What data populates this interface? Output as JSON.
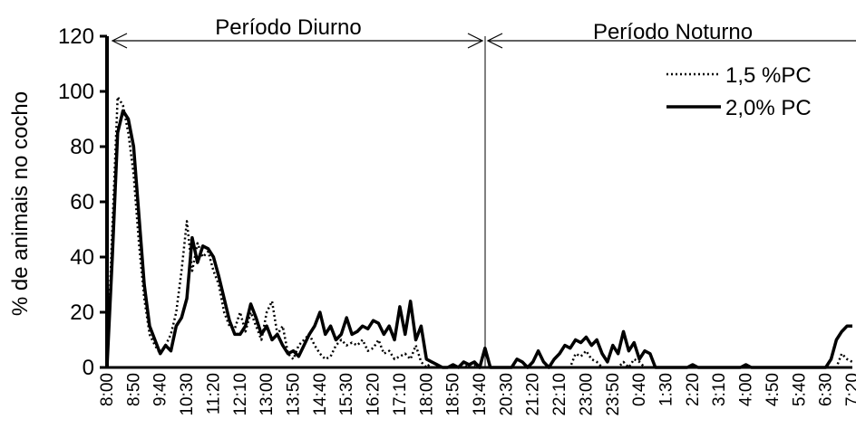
{
  "chart_data": {
    "type": "line",
    "y_label": "% de animais no cocho",
    "annotations": [
      {
        "text": "Período Diurno"
      },
      {
        "text": "Período Noturno"
      }
    ],
    "legend": "upper right",
    "ylim": [
      0,
      120
    ],
    "yticks": [
      0,
      20,
      40,
      60,
      80,
      100,
      120
    ],
    "categories": [
      "8:00",
      null,
      null,
      null,
      null,
      "8:50",
      null,
      null,
      null,
      null,
      "9:40",
      null,
      null,
      null,
      null,
      "10:30",
      null,
      null,
      null,
      null,
      "11:20",
      null,
      null,
      null,
      null,
      "12:10",
      null,
      null,
      null,
      null,
      "13:00",
      null,
      null,
      null,
      null,
      "13:50",
      null,
      null,
      null,
      null,
      "14:40",
      null,
      null,
      null,
      null,
      "15:30",
      null,
      null,
      null,
      null,
      "16:20",
      null,
      null,
      null,
      null,
      "17:10",
      null,
      null,
      null,
      null,
      "18:00",
      null,
      null,
      null,
      null,
      "18:50",
      null,
      null,
      null,
      null,
      "19:40",
      null,
      null,
      null,
      null,
      "20:30",
      null,
      null,
      null,
      null,
      "21:20",
      null,
      null,
      null,
      null,
      "22:10",
      null,
      null,
      null,
      null,
      "23:00",
      null,
      null,
      null,
      null,
      "23:50",
      null,
      null,
      null,
      null,
      "0:40",
      null,
      null,
      null,
      null,
      "1:30",
      null,
      null,
      null,
      null,
      "2:20",
      null,
      null,
      null,
      null,
      "3:10",
      null,
      null,
      null,
      null,
      "4:00",
      null,
      null,
      null,
      null,
      "4:50",
      null,
      null,
      null,
      null,
      "5:40",
      null,
      null,
      null,
      null,
      "6:30",
      null,
      null,
      null,
      null,
      "7:20"
    ],
    "series": [
      {
        "name": "1,5 %PC",
        "color": "#000000",
        "dash": "dotted",
        "values": [
          0,
          50,
          98,
          95,
          85,
          70,
          45,
          25,
          12,
          8,
          5,
          8,
          12,
          20,
          35,
          53,
          35,
          45,
          40,
          42,
          35,
          30,
          20,
          15,
          14,
          20,
          13,
          20,
          15,
          10,
          20,
          24,
          12,
          15,
          5,
          3,
          8,
          10,
          12,
          8,
          5,
          3,
          4,
          8,
          10,
          8,
          9,
          8,
          10,
          6,
          7,
          10,
          5,
          6,
          3,
          4,
          5,
          3,
          8,
          2,
          0,
          2,
          1,
          0,
          0,
          0,
          0,
          0,
          1,
          1,
          0,
          0,
          0,
          0,
          0,
          0,
          0,
          0,
          0,
          0,
          0,
          0,
          0,
          0,
          0,
          0,
          0,
          0,
          5,
          4,
          6,
          3,
          2,
          0,
          0,
          0,
          0,
          2,
          0,
          3,
          2,
          0,
          0,
          0,
          0,
          0,
          0,
          0,
          0,
          0,
          0,
          0,
          0,
          0,
          0,
          0,
          0,
          0,
          0,
          0,
          0,
          0,
          0,
          0,
          0,
          0,
          0,
          0,
          0,
          0,
          0,
          0,
          0,
          0,
          0,
          0,
          0,
          0,
          5,
          3,
          2
        ]
      },
      {
        "name": "2,0% PC",
        "color": "#000000",
        "dash": "solid",
        "values": [
          0,
          40,
          85,
          93,
          90,
          80,
          55,
          30,
          15,
          10,
          5,
          8,
          6,
          15,
          18,
          25,
          47,
          38,
          44,
          43,
          40,
          33,
          25,
          17,
          12,
          12,
          15,
          23,
          18,
          12,
          15,
          10,
          12,
          8,
          5,
          6,
          4,
          8,
          12,
          15,
          20,
          12,
          15,
          10,
          12,
          18,
          12,
          13,
          15,
          14,
          17,
          16,
          12,
          15,
          10,
          22,
          12,
          24,
          10,
          15,
          3,
          2,
          1,
          0,
          0,
          1,
          0,
          2,
          1,
          2,
          0,
          7,
          0,
          0,
          0,
          0,
          0,
          3,
          2,
          0,
          2,
          6,
          2,
          0,
          3,
          5,
          8,
          7,
          10,
          9,
          11,
          8,
          10,
          5,
          2,
          8,
          5,
          13,
          6,
          9,
          3,
          6,
          5,
          0,
          0,
          0,
          0,
          0,
          0,
          0,
          1,
          0,
          0,
          0,
          0,
          0,
          0,
          0,
          0,
          0,
          1,
          0,
          0,
          0,
          0,
          0,
          0,
          0,
          0,
          0,
          0,
          0,
          0,
          0,
          0,
          0,
          3,
          10,
          13,
          15,
          15
        ]
      }
    ]
  }
}
